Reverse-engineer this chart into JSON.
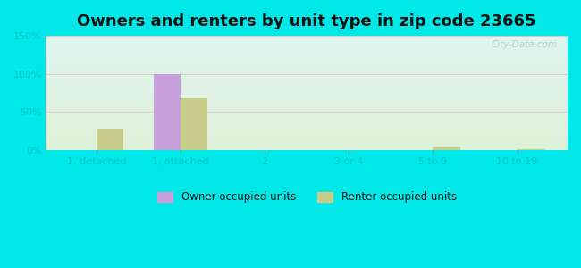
{
  "title": "Owners and renters by unit type in zip code 23665",
  "categories": [
    "1, detached",
    "1, attached",
    "2",
    "3 or 4",
    "5 to 9",
    "10 to 19"
  ],
  "owner_values": [
    0,
    100,
    0,
    0,
    0,
    0
  ],
  "renter_values": [
    28,
    68,
    0,
    0,
    5,
    1
  ],
  "owner_color": "#c9a0dc",
  "renter_color": "#c8cc8a",
  "ylim": [
    0,
    150
  ],
  "yticks": [
    0,
    50,
    100,
    150
  ],
  "ytick_labels": [
    "0%",
    "50%",
    "100%",
    "150%"
  ],
  "outer_bg": "#00e8e8",
  "plot_bg_top": "#e0f5f0",
  "plot_bg_bottom": "#dff0d8",
  "title_fontsize": 13,
  "bar_width": 0.32,
  "watermark": "City-Data.com",
  "grid_color": "#e0c8c8",
  "tick_label_color": "#00c8c8"
}
